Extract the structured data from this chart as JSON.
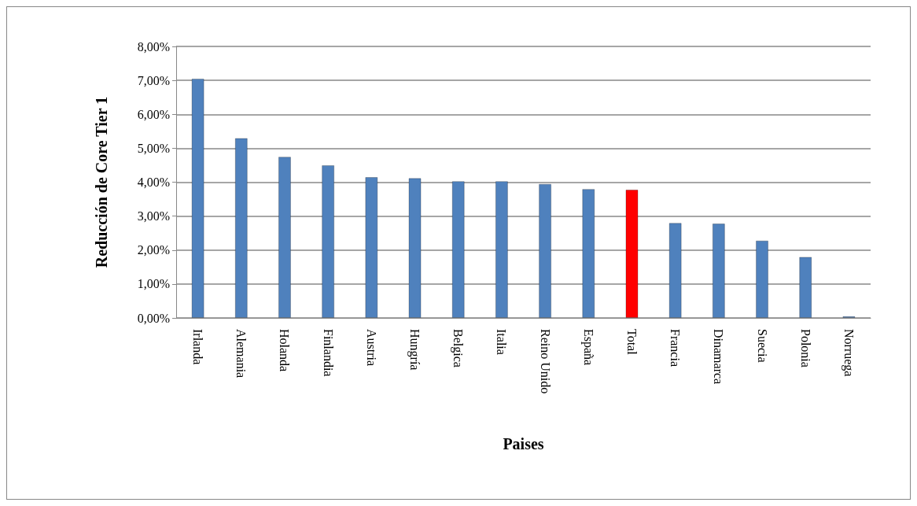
{
  "chart_data": {
    "type": "bar",
    "xlabel": "Paises",
    "ylabel": "Reducción de Core Tier 1",
    "categories": [
      "Irlanda",
      "Alemania",
      "Holanda",
      "Finlandia",
      "Austria",
      "Hungría",
      "Belgica",
      "Italia",
      "Reino Unido",
      "España",
      "Total",
      "Francia",
      "Dinamarca",
      "Suecia",
      "Polonia",
      "Norruega"
    ],
    "values": [
      7.05,
      5.3,
      4.75,
      4.5,
      4.15,
      4.12,
      4.03,
      4.03,
      3.95,
      3.8,
      3.78,
      2.8,
      2.78,
      2.28,
      1.8,
      0.05
    ],
    "colors": [
      "#4f81bd",
      "#4f81bd",
      "#4f81bd",
      "#4f81bd",
      "#4f81bd",
      "#4f81bd",
      "#4f81bd",
      "#4f81bd",
      "#4f81bd",
      "#4f81bd",
      "#ff0000",
      "#4f81bd",
      "#4f81bd",
      "#4f81bd",
      "#4f81bd",
      "#4f81bd"
    ],
    "ylim": [
      0,
      8
    ],
    "yticks": [
      {
        "value": 0,
        "label": "0,00%"
      },
      {
        "value": 1,
        "label": "1,00%"
      },
      {
        "value": 2,
        "label": "2,00%"
      },
      {
        "value": 3,
        "label": "3,00%"
      },
      {
        "value": 4,
        "label": "4,00%"
      },
      {
        "value": 5,
        "label": "5,00%"
      },
      {
        "value": 6,
        "label": "6,00%"
      },
      {
        "value": 7,
        "label": "7,00%"
      },
      {
        "value": 8,
        "label": "8,00%"
      }
    ],
    "grid": "y"
  }
}
